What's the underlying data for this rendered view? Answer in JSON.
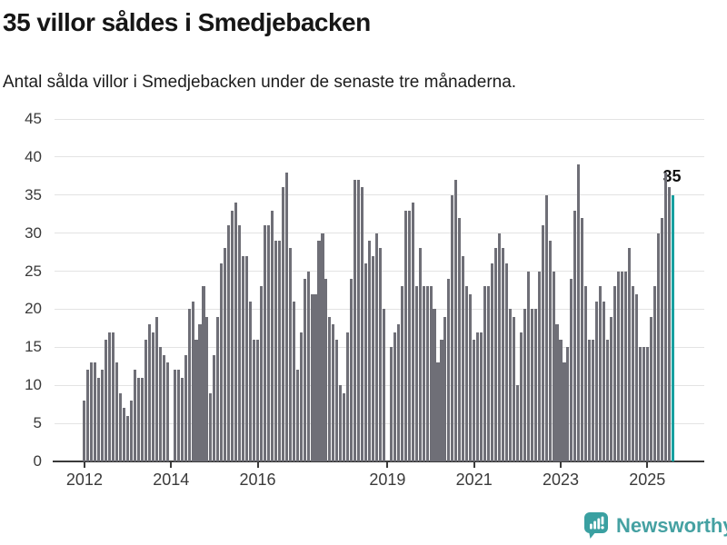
{
  "header": {
    "title": "35 villor såldes i Smedjebacken",
    "subtitle": "Antal sålda villor i Smedjebacken under de senaste tre månaderna."
  },
  "chart_data": {
    "type": "bar",
    "title": "35 villor såldes i Smedjebacken",
    "subtitle": "Antal sålda villor i Smedjebacken under de senaste tre månaderna.",
    "unit": "sålda villor (rullande tre månader)",
    "period_start": "2012-01",
    "period_end": "2025-08",
    "grid": true,
    "ylim": [
      0,
      45
    ],
    "yticks": [
      0,
      5,
      10,
      15,
      20,
      25,
      30,
      35,
      40,
      45
    ],
    "xticks": [
      {
        "label": "2012",
        "month_index": 0
      },
      {
        "label": "2014",
        "month_index": 24
      },
      {
        "label": "2016",
        "month_index": 48
      },
      {
        "label": "2019",
        "month_index": 84
      },
      {
        "label": "2021",
        "month_index": 108
      },
      {
        "label": "2023",
        "month_index": 132
      },
      {
        "label": "2025",
        "month_index": 156
      }
    ],
    "values": [
      8,
      12,
      13,
      13,
      11,
      12,
      16,
      17,
      17,
      13,
      9,
      7,
      6,
      8,
      12,
      11,
      11,
      16,
      18,
      17,
      19,
      15,
      14,
      13,
      0,
      12,
      12,
      11,
      14,
      20,
      21,
      16,
      18,
      23,
      19,
      9,
      14,
      19,
      26,
      28,
      31,
      33,
      34,
      31,
      27,
      27,
      21,
      16,
      16,
      23,
      31,
      31,
      33,
      29,
      29,
      36,
      38,
      28,
      21,
      12,
      17,
      24,
      25,
      22,
      22,
      29,
      30,
      24,
      19,
      18,
      16,
      10,
      9,
      17,
      24,
      37,
      37,
      36,
      26,
      29,
      27,
      30,
      28,
      20,
      0,
      15,
      17,
      18,
      23,
      33,
      33,
      34,
      23,
      28,
      23,
      23,
      23,
      20,
      13,
      16,
      19,
      24,
      35,
      37,
      32,
      27,
      23,
      22,
      16,
      17,
      17,
      23,
      23,
      26,
      28,
      30,
      28,
      26,
      20,
      19,
      10,
      17,
      20,
      25,
      20,
      20,
      25,
      31,
      35,
      29,
      25,
      18,
      16,
      13,
      15,
      24,
      33,
      39,
      32,
      23,
      16,
      16,
      21,
      23,
      21,
      16,
      19,
      23,
      25,
      25,
      25,
      28,
      23,
      22,
      15,
      15,
      15,
      19,
      23,
      30,
      32,
      38,
      36,
      35
    ],
    "highlight_last": true,
    "last_value_label": "35",
    "colors": {
      "bar": "#6f6f77",
      "highlight": "#17a0a0",
      "axis": "#3a3a3a",
      "gridline": "#e3e3e3",
      "tick_label": "#3a3a3a",
      "annotation": "#111111"
    },
    "legend": null
  },
  "footer": {
    "brand": "Newsworthy",
    "brand_color": "#45a1a2",
    "icon_color": "#3aa0a1"
  }
}
